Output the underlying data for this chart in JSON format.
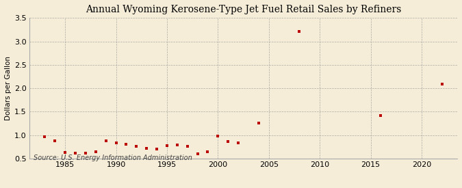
{
  "title": "Annual Wyoming Kerosene-Type Jet Fuel Retail Sales by Refiners",
  "ylabel": "Dollars per Gallon",
  "source": "Source: U.S. Energy Information Administration",
  "background_color": "#f5edd8",
  "marker_color": "#bb0000",
  "xlim": [
    1981.5,
    2023.5
  ],
  "ylim": [
    0.5,
    3.5
  ],
  "yticks": [
    0.5,
    1.0,
    1.5,
    2.0,
    2.5,
    3.0,
    3.5
  ],
  "xticks": [
    1985,
    1990,
    1995,
    2000,
    2005,
    2010,
    2015,
    2020
  ],
  "data": {
    "years": [
      1983,
      1984,
      1985,
      1986,
      1987,
      1988,
      1989,
      1990,
      1991,
      1992,
      1993,
      1994,
      1995,
      1996,
      1997,
      1998,
      1999,
      2000,
      2001,
      2002,
      2004,
      2008,
      2016,
      2022
    ],
    "values": [
      0.97,
      0.88,
      0.63,
      0.62,
      0.62,
      0.65,
      0.88,
      0.83,
      0.81,
      0.76,
      0.71,
      0.7,
      0.77,
      0.79,
      0.76,
      0.6,
      0.65,
      0.98,
      0.87,
      0.84,
      1.25,
      3.21,
      1.42,
      2.09
    ]
  }
}
